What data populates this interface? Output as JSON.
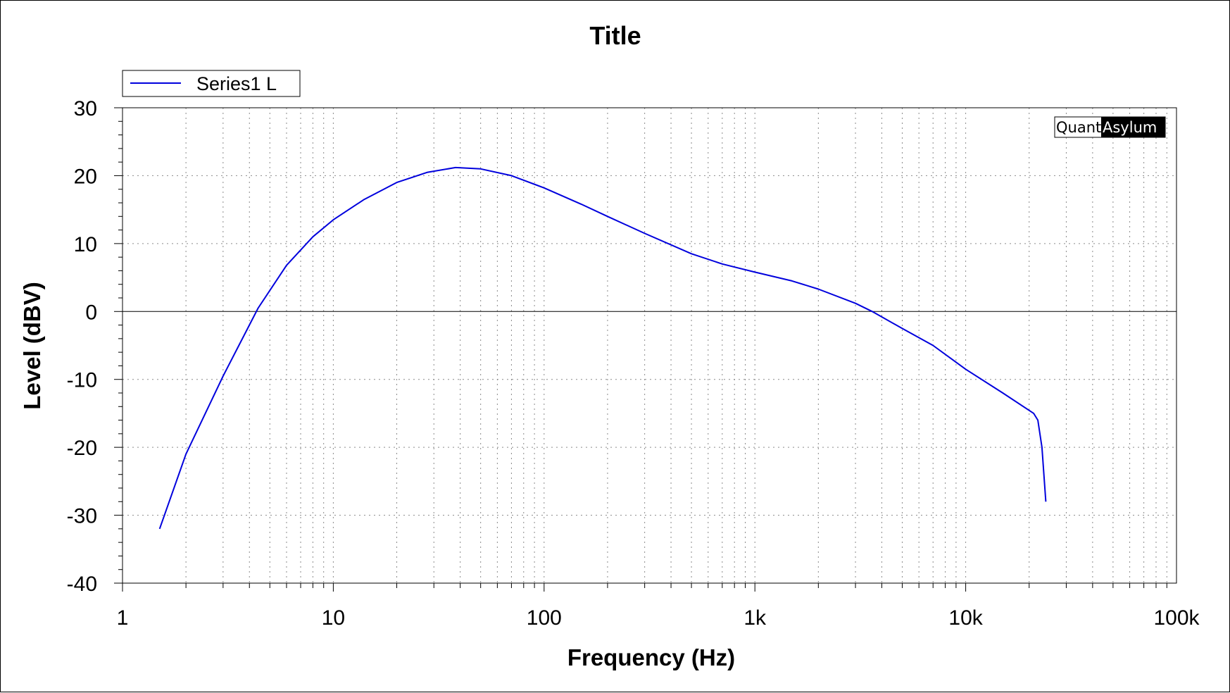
{
  "chart_data": {
    "type": "line",
    "title": "Title",
    "xlabel": "Frequency (Hz)",
    "ylabel": "Level (dBV)",
    "x_scale": "log",
    "xlim": [
      1,
      100000
    ],
    "ylim": [
      -40,
      30
    ],
    "x_ticks": [
      {
        "value": 1,
        "label": "1"
      },
      {
        "value": 10,
        "label": "10"
      },
      {
        "value": 100,
        "label": "100"
      },
      {
        "value": 1000,
        "label": "1k"
      },
      {
        "value": 10000,
        "label": "10k"
      },
      {
        "value": 100000,
        "label": "100k"
      }
    ],
    "y_ticks": [
      {
        "value": 30,
        "label": "30"
      },
      {
        "value": 20,
        "label": "20"
      },
      {
        "value": 10,
        "label": "10"
      },
      {
        "value": 0,
        "label": "0"
      },
      {
        "value": -10,
        "label": "-10"
      },
      {
        "value": -20,
        "label": "-20"
      },
      {
        "value": -30,
        "label": "-30"
      },
      {
        "value": -40,
        "label": "-40"
      }
    ],
    "grid": true,
    "legend_position": "top-left",
    "series": [
      {
        "name": "Series1 L",
        "color": "#0000dd",
        "points": [
          [
            1.5,
            -32
          ],
          [
            2,
            -21
          ],
          [
            3,
            -9.5
          ],
          [
            4.4,
            0.5
          ],
          [
            6,
            6.8
          ],
          [
            8,
            11
          ],
          [
            10,
            13.5
          ],
          [
            14,
            16.5
          ],
          [
            20,
            19
          ],
          [
            28,
            20.5
          ],
          [
            38,
            21.2
          ],
          [
            50,
            21
          ],
          [
            70,
            20
          ],
          [
            100,
            18.2
          ],
          [
            150,
            15.8
          ],
          [
            200,
            14
          ],
          [
            300,
            11.5
          ],
          [
            500,
            8.5
          ],
          [
            700,
            7
          ],
          [
            1000,
            5.8
          ],
          [
            1500,
            4.5
          ],
          [
            2000,
            3.3
          ],
          [
            3000,
            1.2
          ],
          [
            3600,
            0
          ],
          [
            5000,
            -2.5
          ],
          [
            7000,
            -5
          ],
          [
            10000,
            -8.5
          ],
          [
            15000,
            -12
          ],
          [
            21000,
            -15
          ],
          [
            22000,
            -16
          ],
          [
            23000,
            -20
          ],
          [
            24000,
            -28
          ]
        ]
      }
    ]
  },
  "brand": {
    "part1": "Quant",
    "part2": "Asylum"
  }
}
